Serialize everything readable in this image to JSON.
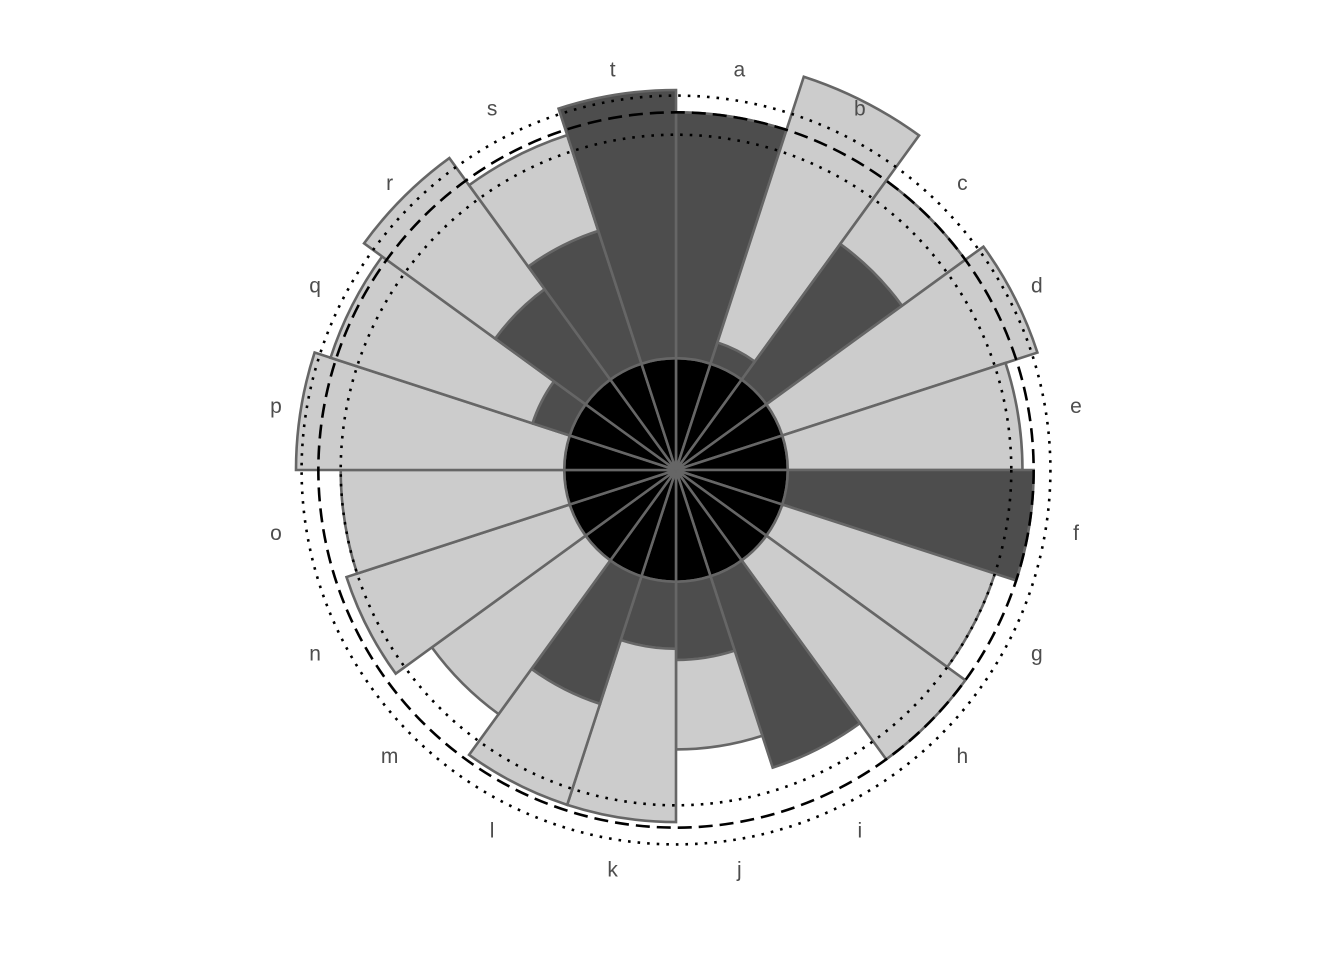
{
  "chart_data": {
    "type": "bar",
    "coordinate_system": "polar",
    "stacked": true,
    "categories": [
      "a",
      "b",
      "c",
      "d",
      "e",
      "f",
      "g",
      "h",
      "i",
      "j",
      "k",
      "l",
      "m",
      "n",
      "o",
      "p",
      "q",
      "r",
      "s",
      "t"
    ],
    "series": [
      {
        "values": [
          1,
          1,
          1,
          1,
          1,
          1,
          1,
          1,
          1,
          1,
          1,
          1,
          1,
          1,
          1,
          1,
          1,
          1,
          1,
          1
        ],
        "color": "#000000"
      },
      {
        "values": [
          2.2,
          0.2,
          1.5,
          0,
          0,
          2.2,
          0,
          0,
          1.8,
          0.7,
          0.6,
          1.2,
          0,
          0,
          0,
          0,
          0.35,
          1.0,
          1.25,
          2.4
        ],
        "color": "#4d4d4d"
      },
      {
        "values": [
          0,
          2.5,
          0.7,
          2.4,
          2.1,
          0,
          2.0,
          2.2,
          0,
          0.8,
          1.55,
          0.95,
          1.7,
          2.1,
          2.0,
          2.4,
          1.9,
          1.45,
          0.9,
          0
        ],
        "color": "#cccccc"
      }
    ],
    "reference_lines": [
      {
        "r": 3.2,
        "style": "dashed"
      },
      {
        "r": 3.0,
        "style": "dotted"
      },
      {
        "r": 3.35,
        "style": "dotted"
      }
    ],
    "rmax": 3.4,
    "grid": false,
    "legend": "none",
    "title": "",
    "xlabel": "",
    "ylabel": ""
  }
}
